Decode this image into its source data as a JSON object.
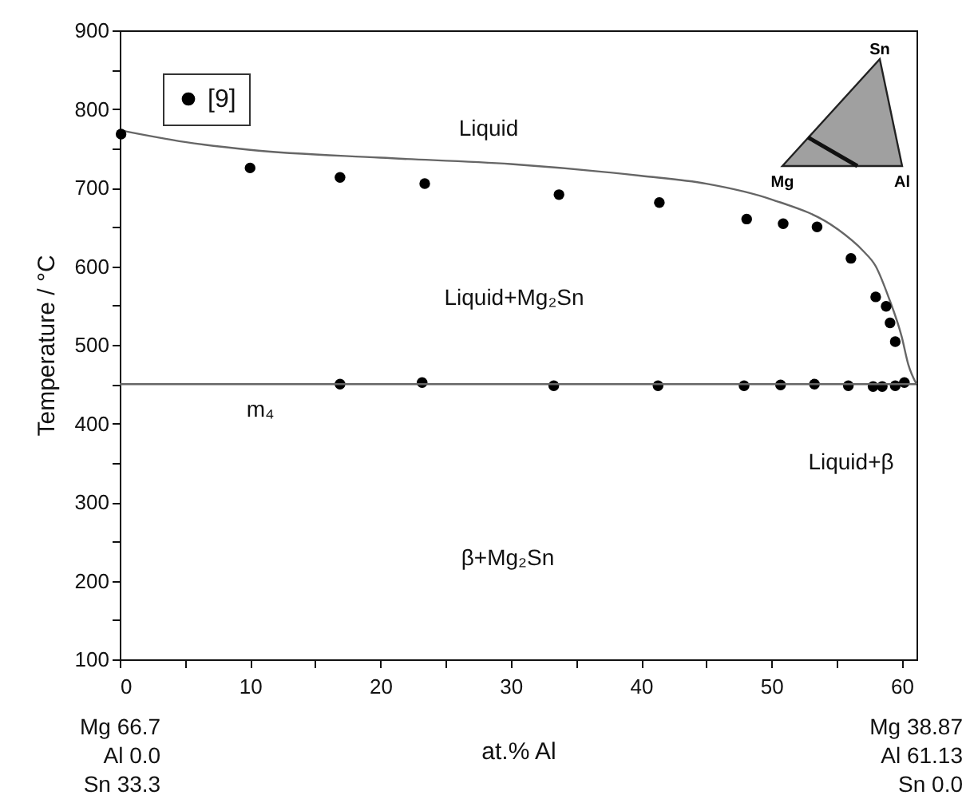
{
  "chart_data": {
    "type": "scatter",
    "xlabel": "at.% Al",
    "ylabel": "Temperature / °C",
    "xlim": [
      0,
      61.13
    ],
    "ylim": [
      100,
      900
    ],
    "xticks": [
      0,
      {
        "value": 5,
        "label": null
      },
      10,
      {
        "value": 15,
        "label": null
      },
      20,
      {
        "value": 25,
        "label": null
      },
      30,
      {
        "value": 35,
        "label": null
      },
      40,
      {
        "value": 45,
        "label": null
      },
      50,
      {
        "value": 55,
        "label": null
      },
      60
    ],
    "yticks": [
      100,
      {
        "value": 150,
        "label": null
      },
      200,
      {
        "value": 250,
        "label": null
      },
      300,
      {
        "value": 350,
        "label": null
      },
      400,
      {
        "value": 450,
        "label": null
      },
      500,
      {
        "value": 550,
        "label": null
      },
      600,
      {
        "value": 650,
        "label": null
      },
      700,
      {
        "value": 750,
        "label": null
      },
      800,
      {
        "value": 850,
        "label": null
      },
      900
    ],
    "series": [
      {
        "name": "[9]",
        "color": "#000000",
        "x": [
          0.1,
          10,
          16.9,
          23.4,
          33.7,
          41.4,
          48.1,
          50.9,
          53.5,
          56.1,
          58,
          58.8,
          59.1,
          59.5,
          16.9,
          23.2,
          33.3,
          41.3,
          47.9,
          50.7,
          53.3,
          55.9,
          57.8,
          58.5,
          59.5,
          60.2
        ],
        "values": [
          768,
          725,
          713,
          705,
          691,
          681,
          660,
          654,
          650,
          610,
          561,
          549,
          528,
          504,
          450,
          452,
          448,
          448,
          448,
          449,
          450,
          448,
          447,
          447,
          448,
          452
        ]
      },
      {
        "type": "line",
        "color": "#666666",
        "marker": "none",
        "x": [
          0,
          5,
          10,
          20,
          30,
          40,
          45,
          50,
          55,
          57,
          58,
          59,
          60,
          60.5,
          61.13
        ],
        "values": [
          773,
          758,
          748,
          738,
          730,
          715,
          705,
          685,
          648,
          620,
          600,
          560,
          510,
          475,
          450
        ]
      }
    ],
    "ref_lines": [
      {
        "axis": "y",
        "value": 450,
        "color": "#666666"
      }
    ],
    "legend": "top left",
    "marker": "circle",
    "grid": false,
    "annotations": [
      "Liquid",
      "Liquid+Mg₂Sn",
      "m₄",
      "β+Mg₂Sn",
      "Liquid+β",
      "Mg 66.7",
      "Al 0.0",
      "Sn 33.3",
      "Mg 38.87",
      "Al 61.13",
      "Sn 0.0",
      "Sn",
      "Mg",
      "Al"
    ]
  }
}
